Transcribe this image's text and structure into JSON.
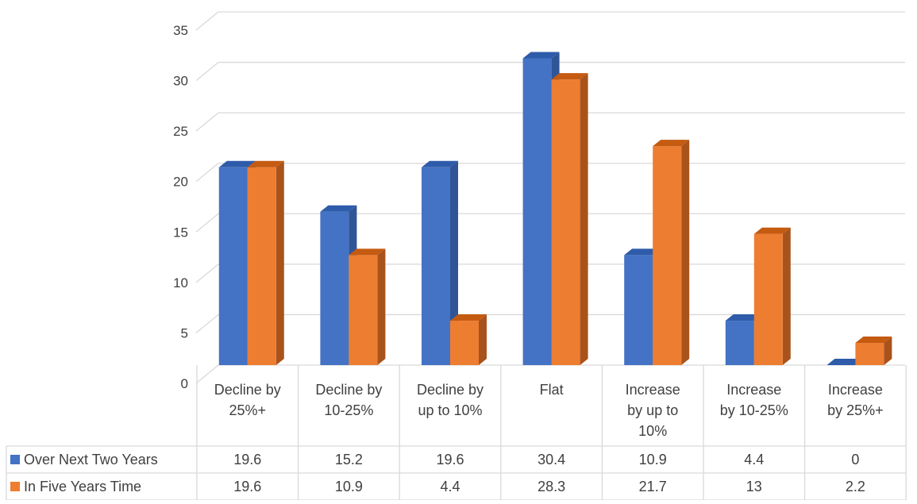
{
  "colors": {
    "series_front": [
      "#4472C4",
      "#ED7D31"
    ],
    "series_side": [
      "#2F5597",
      "#A9531C"
    ],
    "series_top": [
      "#2E5BAA",
      "#C55A11"
    ],
    "grid": "#D9D9D9",
    "text": "#404040"
  },
  "chart_data": {
    "type": "bar",
    "variant": "3d-clustered-column-with-data-table",
    "categories": [
      [
        "Decline by",
        "25%+"
      ],
      [
        "Decline by",
        "10-25%"
      ],
      [
        "Decline by",
        "up to 10%"
      ],
      [
        "Flat"
      ],
      [
        "Increase",
        "by up to",
        "10%"
      ],
      [
        "Increase",
        "by 10-25%"
      ],
      [
        "Increase",
        "by 25%+"
      ]
    ],
    "series": [
      {
        "name": "Over Next Two Years",
        "values": [
          19.6,
          15.2,
          19.6,
          30.4,
          10.9,
          4.4,
          0
        ]
      },
      {
        "name": "In Five Years Time",
        "values": [
          19.6,
          10.9,
          4.4,
          28.3,
          21.7,
          13,
          2.2
        ]
      }
    ],
    "title": "",
    "xlabel": "",
    "ylabel": "",
    "ylim": [
      0,
      35
    ],
    "yticks": [
      0,
      5,
      10,
      15,
      20,
      25,
      30,
      35
    ],
    "grid": true,
    "legend": "data-table-left"
  }
}
